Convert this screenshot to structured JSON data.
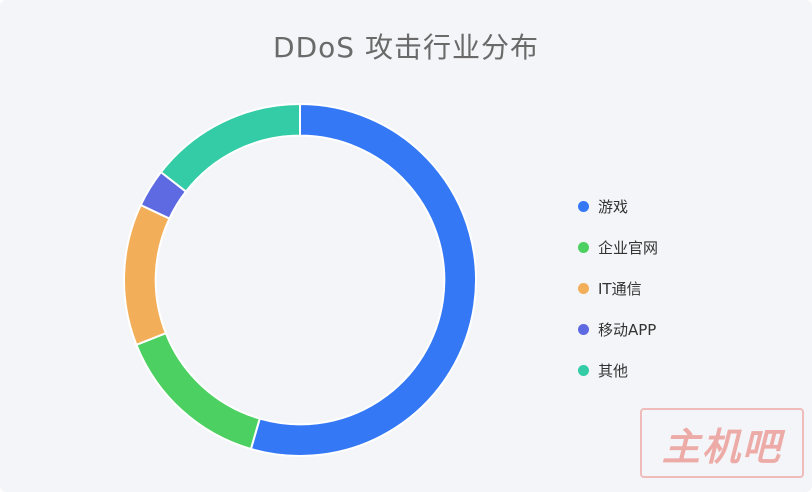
{
  "chart_data": {
    "type": "pie",
    "title": "DDoS 攻击行业分布",
    "inner_radius_ratio": 0.82,
    "legend_position": "right",
    "categories": [
      "游戏",
      "企业官网",
      "IT通信",
      "移动APP",
      "其他"
    ],
    "values": [
      54.5,
      14.5,
      13.0,
      3.5,
      14.5
    ],
    "colors": [
      "#3478f6",
      "#4cd062",
      "#f3ae59",
      "#5d6ae2",
      "#34cba7"
    ]
  },
  "watermark": {
    "text": "主机吧"
  }
}
